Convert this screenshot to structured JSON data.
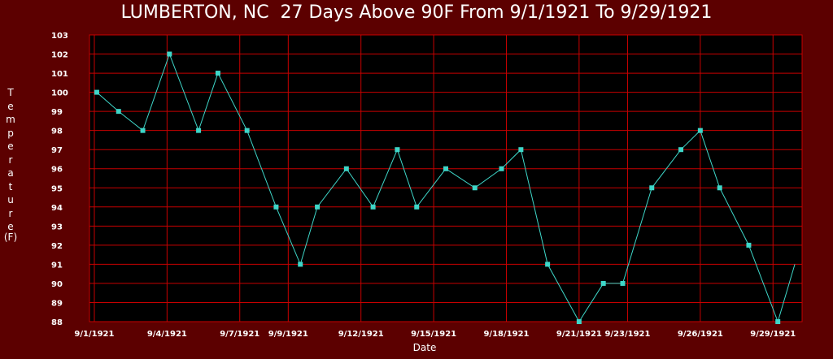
{
  "chart_data": {
    "type": "line",
    "title": "LUMBERTON, NC  27 Days Above 90F From 9/1/1921 To 9/29/1921",
    "ylabel_letters": "Temperature",
    "ylabel_unit": "(F)",
    "xlabel": "Date",
    "ylim": [
      88,
      103
    ],
    "grid": true,
    "yticks": [
      88,
      89,
      90,
      91,
      92,
      93,
      94,
      95,
      96,
      97,
      98,
      99,
      100,
      101,
      102,
      103
    ],
    "xticks": [
      {
        "label": "9/1/1921",
        "day": 1
      },
      {
        "label": "9/4/1921",
        "day": 4
      },
      {
        "label": "9/7/1921",
        "day": 7
      },
      {
        "label": "9/9/1921",
        "day": 9
      },
      {
        "label": "9/12/1921",
        "day": 12
      },
      {
        "label": "9/15/1921",
        "day": 15
      },
      {
        "label": "9/18/1921",
        "day": 18
      },
      {
        "label": "9/21/1921",
        "day": 21
      },
      {
        "label": "9/23/1921",
        "day": 23
      },
      {
        "label": "9/26/1921",
        "day": 26
      },
      {
        "label": "9/29/1921",
        "day": 29
      }
    ],
    "series": [
      {
        "x": [
          1.1,
          2.0,
          3.0,
          4.1,
          5.3,
          6.1,
          7.3,
          8.5,
          9.5,
          10.2,
          11.4,
          12.5,
          13.5,
          14.3,
          15.5,
          16.7,
          17.8,
          18.6,
          19.7,
          21.0,
          22.0,
          22.8,
          24.0,
          25.2,
          26.0,
          26.8,
          28.0,
          29.2,
          29.9
        ],
        "y": [
          100,
          99,
          98,
          102,
          98,
          101,
          98,
          94,
          91,
          94,
          96,
          94,
          97,
          94,
          96,
          95,
          96,
          97,
          91,
          88,
          90,
          90,
          95,
          97,
          98,
          95,
          92,
          88,
          91
        ]
      }
    ],
    "colors": {
      "background": "#5c0000",
      "plot_bg": "#000000",
      "grid": "#c80000",
      "line": "#3ed6c8",
      "marker": "#3ed6c8",
      "text": "#ffffff"
    }
  }
}
